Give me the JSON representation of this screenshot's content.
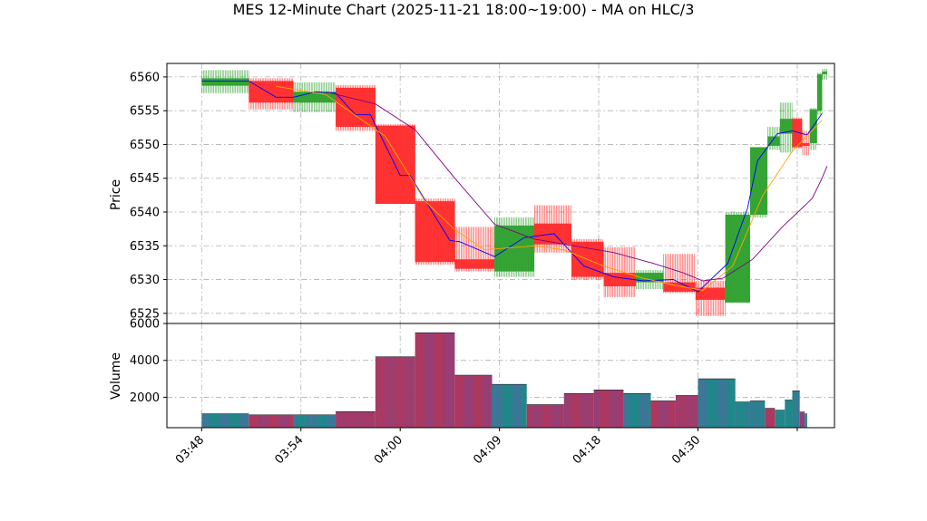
{
  "chart_data": [
    {
      "type": "candlestick",
      "title": "MES 12-Minute Chart (2025-11-21 18:00~19:00) - MA on HLC/3",
      "ylabel": "Price",
      "ylim": [
        6523.5,
        6562.0
      ],
      "yticks": [
        6525,
        6530,
        6535,
        6540,
        6545,
        6550,
        6555,
        6560
      ],
      "grid": true,
      "colors": {
        "up": "#2ca02c",
        "down": "#ff2a2a"
      },
      "candles": [
        {
          "t": 0.0,
          "open": 6558.7,
          "high": 6561.0,
          "low": 6557.6,
          "close": 6559.8
        },
        {
          "t": 4.75,
          "open": 6559.4,
          "high": 6559.8,
          "low": 6555.2,
          "close": 6556.2
        },
        {
          "t": 9.25,
          "open": 6556.2,
          "high": 6559.2,
          "low": 6554.8,
          "close": 6557.8
        },
        {
          "t": 13.5,
          "open": 6558.4,
          "high": 6558.8,
          "low": 6552.0,
          "close": 6552.6
        },
        {
          "t": 17.5,
          "open": 6552.8,
          "high": 6553.0,
          "low": 6541.2,
          "close": 6541.2
        },
        {
          "t": 21.5,
          "open": 6541.6,
          "high": 6542.0,
          "low": 6532.2,
          "close": 6532.6
        },
        {
          "t": 25.5,
          "open": 6533.0,
          "high": 6537.8,
          "low": 6531.2,
          "close": 6531.6
        },
        {
          "t": 29.5,
          "open": 6531.2,
          "high": 6539.2,
          "low": 6530.4,
          "close": 6538.0
        },
        {
          "t": 33.5,
          "open": 6538.3,
          "high": 6541.0,
          "low": 6534.0,
          "close": 6535.2
        },
        {
          "t": 37.25,
          "open": 6535.6,
          "high": 6536.0,
          "low": 6530.0,
          "close": 6530.4
        },
        {
          "t": 40.5,
          "open": 6531.0,
          "high": 6534.8,
          "low": 6527.4,
          "close": 6529.0
        },
        {
          "t": 43.75,
          "open": 6529.6,
          "high": 6531.4,
          "low": 6528.6,
          "close": 6531.0
        },
        {
          "t": 46.5,
          "open": 6529.6,
          "high": 6533.8,
          "low": 6528.0,
          "close": 6528.2
        },
        {
          "t": 49.75,
          "open": 6528.8,
          "high": 6529.8,
          "low": 6524.6,
          "close": 6527.0
        },
        {
          "t": 52.75,
          "open": 6526.6,
          "high": 6540.0,
          "low": 6526.6,
          "close": 6539.6
        },
        {
          "t": 55.25,
          "open": 6539.6,
          "high": 6549.6,
          "low": 6539.2,
          "close": 6549.6
        },
        {
          "t": 57.0,
          "open": 6549.8,
          "high": 6552.6,
          "low": 6549.2,
          "close": 6551.2
        },
        {
          "t": 58.25,
          "open": 6551.6,
          "high": 6556.2,
          "low": 6548.8,
          "close": 6553.8
        },
        {
          "t": 59.5,
          "open": 6553.8,
          "high": 6554.0,
          "low": 6549.4,
          "close": 6549.6
        },
        {
          "t": 60.5,
          "open": 6550.2,
          "high": 6552.0,
          "low": 6548.4,
          "close": 6549.8
        },
        {
          "t": 61.25,
          "open": 6550.2,
          "high": 6555.4,
          "low": 6549.2,
          "close": 6555.2
        },
        {
          "t": 62.0,
          "open": 6555.0,
          "high": 6560.6,
          "low": 6554.4,
          "close": 6560.4
        },
        {
          "t": 62.5,
          "open": 6560.4,
          "high": 6561.2,
          "low": 6559.6,
          "close": 6560.8
        }
      ],
      "moving_averages": [
        {
          "color": "#0000ff",
          "points": [
            [
              0,
              6559.4
            ],
            [
              4.75,
              6559.4
            ],
            [
              7.5,
              6557.0
            ],
            [
              9.25,
              6557.0
            ],
            [
              11.5,
              6557.8
            ],
            [
              13.5,
              6557.6
            ],
            [
              15.5,
              6554.4
            ],
            [
              17.0,
              6554.4
            ],
            [
              20.0,
              6545.4
            ],
            [
              21.0,
              6545.4
            ],
            [
              25.0,
              6535.8
            ],
            [
              26.0,
              6535.6
            ],
            [
              29.5,
              6533.4
            ],
            [
              32.5,
              6536.2
            ],
            [
              35.5,
              6536.8
            ],
            [
              38.5,
              6532.0
            ],
            [
              41.5,
              6530.4
            ],
            [
              44.5,
              6529.8
            ],
            [
              47.5,
              6530.0
            ],
            [
              50.0,
              6528.2
            ],
            [
              53.0,
              6532.4
            ],
            [
              55.0,
              6540.6
            ],
            [
              56.0,
              6547.6
            ],
            [
              58.0,
              6551.6
            ],
            [
              59.5,
              6552.0
            ],
            [
              61.0,
              6551.4
            ],
            [
              62.5,
              6554.6
            ]
          ]
        },
        {
          "color": "#ffa500",
          "points": [
            [
              7.5,
              6558.6
            ],
            [
              12.5,
              6557.4
            ],
            [
              18.5,
              6551.2
            ],
            [
              22.5,
              6541.6
            ],
            [
              25.5,
              6537.4
            ],
            [
              28.5,
              6534.4
            ],
            [
              33.5,
              6535.0
            ],
            [
              36.5,
              6534.4
            ],
            [
              40.5,
              6532.0
            ],
            [
              44.5,
              6530.2
            ],
            [
              47.5,
              6529.2
            ],
            [
              50.5,
              6528.4
            ],
            [
              53.5,
              6532.0
            ],
            [
              56.5,
              6542.4
            ],
            [
              59.5,
              6549.0
            ],
            [
              62.5,
              6553.6
            ]
          ]
        },
        {
          "color": "#800080",
          "points": [
            [
              12.5,
              6557.8
            ],
            [
              17.5,
              6556.0
            ],
            [
              21.5,
              6552.2
            ],
            [
              25.5,
              6545.0
            ],
            [
              29.5,
              6538.2
            ],
            [
              33.5,
              6536.0
            ],
            [
              37.5,
              6535.0
            ],
            [
              41.5,
              6534.0
            ],
            [
              45.5,
              6532.4
            ],
            [
              48.5,
              6531.0
            ],
            [
              50.5,
              6529.8
            ],
            [
              52.5,
              6530.2
            ],
            [
              55.5,
              6533.0
            ],
            [
              58.5,
              6537.8
            ],
            [
              61.5,
              6542.0
            ],
            [
              62.5,
              6545.0
            ],
            [
              63.0,
              6546.8
            ]
          ]
        }
      ]
    },
    {
      "type": "bar",
      "ylabel": "Volume",
      "ylim": [
        350,
        6000
      ],
      "yticks": [
        2000,
        4000,
        6000
      ],
      "grid": true,
      "colors": {
        "up": "#1f8a8a",
        "down": "#b0385e"
      },
      "bars": [
        {
          "start": 0.0,
          "end": 4.75,
          "value": 1100,
          "dir": "up"
        },
        {
          "start": 4.75,
          "end": 9.25,
          "value": 1050,
          "dir": "down"
        },
        {
          "start": 9.25,
          "end": 13.5,
          "value": 1050,
          "dir": "up"
        },
        {
          "start": 13.5,
          "end": 17.5,
          "value": 1220,
          "dir": "down"
        },
        {
          "start": 17.5,
          "end": 21.5,
          "value": 4200,
          "dir": "down"
        },
        {
          "start": 21.5,
          "end": 25.5,
          "value": 5500,
          "dir": "down"
        },
        {
          "start": 25.5,
          "end": 29.25,
          "value": 3200,
          "dir": "down"
        },
        {
          "start": 29.25,
          "end": 32.75,
          "value": 2700,
          "dir": "up"
        },
        {
          "start": 32.75,
          "end": 36.5,
          "value": 1600,
          "dir": "down"
        },
        {
          "start": 36.5,
          "end": 39.5,
          "value": 2200,
          "dir": "down"
        },
        {
          "start": 39.5,
          "end": 42.5,
          "value": 2400,
          "dir": "down"
        },
        {
          "start": 42.5,
          "end": 45.25,
          "value": 2200,
          "dir": "up"
        },
        {
          "start": 45.25,
          "end": 47.75,
          "value": 1800,
          "dir": "down"
        },
        {
          "start": 47.75,
          "end": 50.0,
          "value": 2100,
          "dir": "down"
        },
        {
          "start": 50.0,
          "end": 53.75,
          "value": 3000,
          "dir": "up"
        },
        {
          "start": 53.75,
          "end": 55.25,
          "value": 1750,
          "dir": "up"
        },
        {
          "start": 55.25,
          "end": 56.75,
          "value": 1800,
          "dir": "up"
        },
        {
          "start": 56.75,
          "end": 57.75,
          "value": 1400,
          "dir": "down"
        },
        {
          "start": 57.75,
          "end": 58.75,
          "value": 1300,
          "dir": "up"
        },
        {
          "start": 58.75,
          "end": 59.5,
          "value": 1850,
          "dir": "up"
        },
        {
          "start": 59.5,
          "end": 60.25,
          "value": 2350,
          "dir": "up"
        },
        {
          "start": 60.25,
          "end": 60.75,
          "value": 1200,
          "dir": "down"
        },
        {
          "start": 60.75,
          "end": 61.0,
          "value": 1100,
          "dir": "up"
        }
      ]
    }
  ],
  "xaxis": {
    "range": [
      -3.5,
      63.75
    ],
    "ticks": [
      {
        "value": 0,
        "label": "03:48"
      },
      {
        "value": 10,
        "label": "03:54"
      },
      {
        "value": 20,
        "label": "04:00"
      },
      {
        "value": 30,
        "label": "04:09"
      },
      {
        "value": 40,
        "label": "04:18"
      },
      {
        "value": 50,
        "label": "04:30"
      },
      {
        "value": 60,
        "label": ""
      }
    ]
  }
}
